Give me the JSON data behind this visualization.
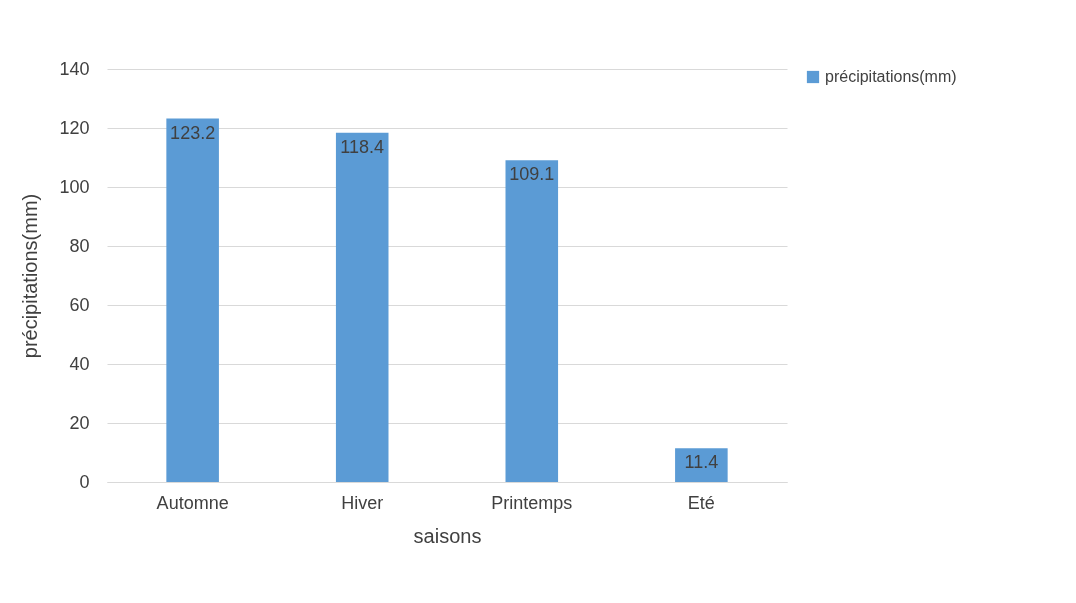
{
  "chart_data": {
    "type": "bar",
    "xlabel": "saisons",
    "ylabel": "précipitations(mm)",
    "categories": [
      "Automne",
      "Hiver",
      "Printemps",
      "Eté"
    ],
    "series": [
      {
        "name": "précipitations(mm)",
        "color": "#5b9bd5",
        "values": [
          123.2,
          118.4,
          109.1,
          11.4
        ]
      }
    ],
    "ylim": [
      0,
      140
    ],
    "yticks": [
      0,
      20,
      40,
      60,
      80,
      100,
      120,
      140
    ],
    "grid": "y",
    "legend": "right",
    "data_labels": true
  }
}
